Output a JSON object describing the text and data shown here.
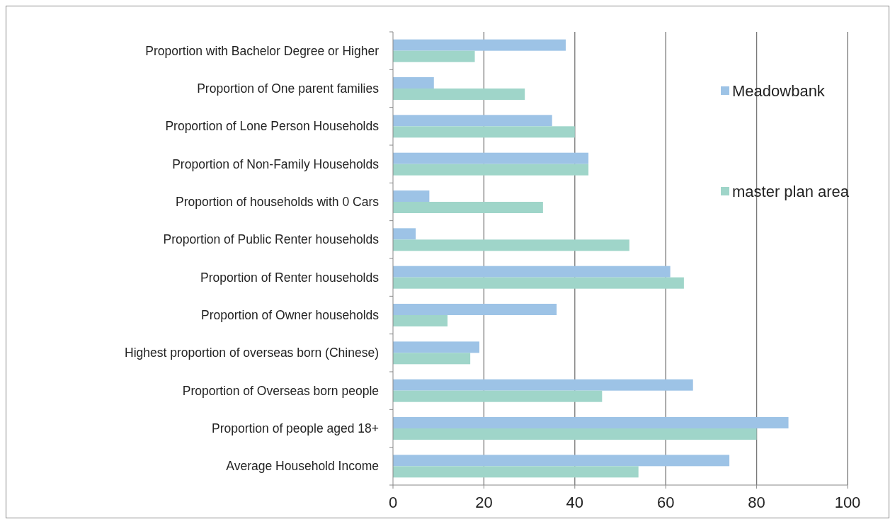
{
  "chart_data": {
    "type": "bar",
    "orientation": "horizontal",
    "categories": [
      "Proportion with Bachelor Degree or Higher",
      "Proportion of One parent families",
      "Proportion of Lone Person Households",
      "Proportion of Non-Family Households",
      "Proportion of households with 0 Cars",
      "Proportion of Public Renter households",
      "Proportion of Renter households",
      "Proportion of Owner households",
      "Highest proportion of overseas born (Chinese)",
      "Proportion of Overseas born people",
      "Proportion of people aged 18+",
      "Average Household Income"
    ],
    "series": [
      {
        "name": "Meadowbank",
        "color": "#9dc3e6",
        "values": [
          38,
          9,
          35,
          43,
          8,
          5,
          61,
          36,
          19,
          66,
          87,
          74
        ]
      },
      {
        "name": "master plan area",
        "color": "#9fd5c9",
        "values": [
          18,
          29,
          40,
          43,
          33,
          52,
          64,
          12,
          17,
          46,
          80,
          54
        ]
      }
    ],
    "xlim": [
      0,
      100
    ],
    "xticks": [
      0,
      20,
      40,
      60,
      80,
      100
    ],
    "grid": "x",
    "legend": "top right"
  }
}
